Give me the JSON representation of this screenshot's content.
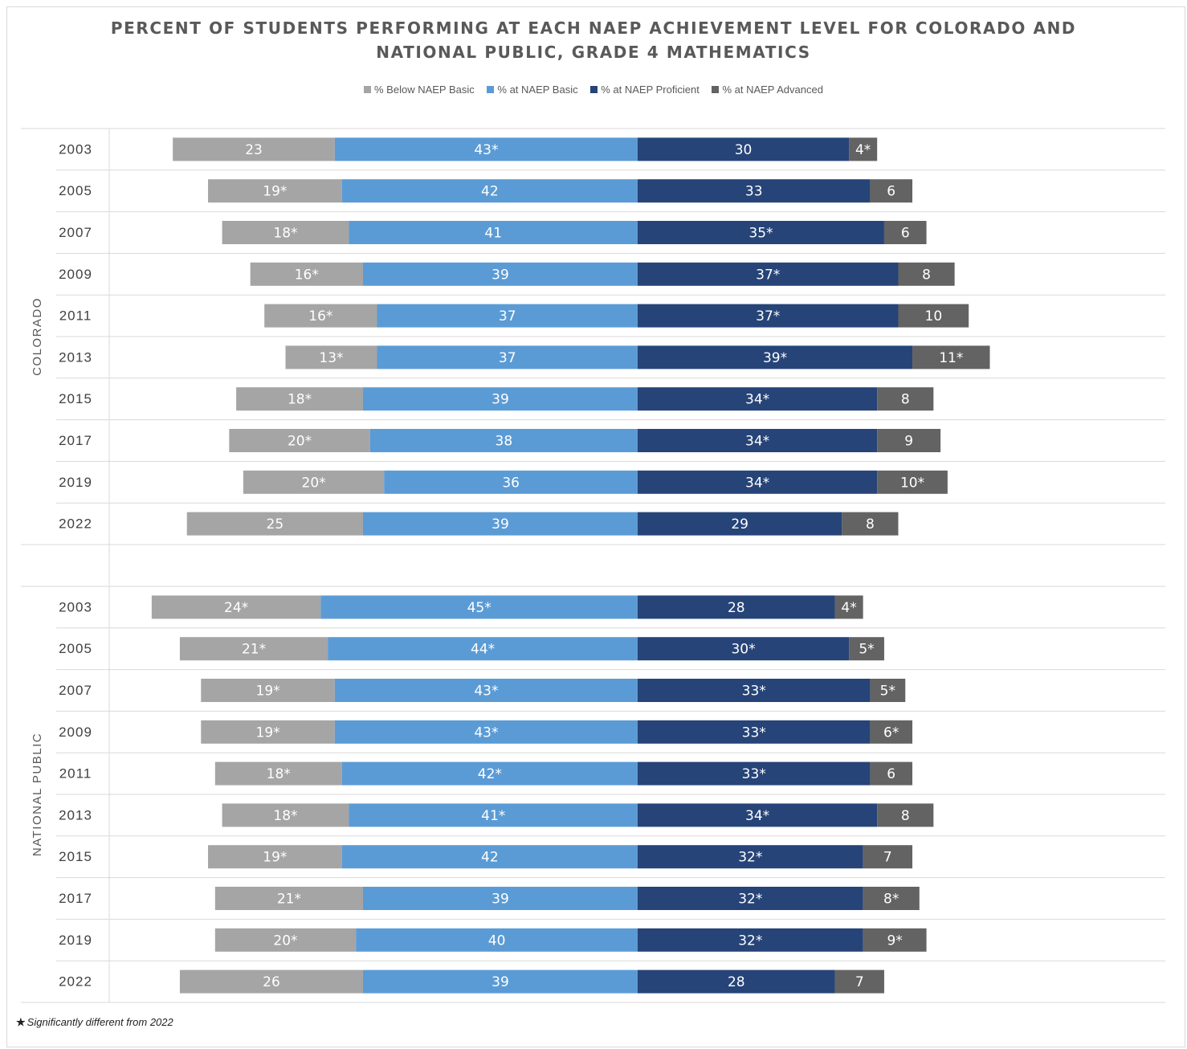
{
  "chart_data": {
    "type": "bar",
    "orientation": "horizontal",
    "stacked": "diverging",
    "title": [
      "PERCENT OF STUDENTS PERFORMING AT EACH NAEP ACHIEVEMENT LEVEL FOR COLORADO AND",
      "NATIONAL PUBLIC, GRADE 4 MATHEMATICS"
    ],
    "legend": [
      {
        "name": "% Below NAEP Basic",
        "color": "#a5a5a5"
      },
      {
        "name": "% at NAEP Basic",
        "color": "#5b9bd5"
      },
      {
        "name": "% at NAEP Proficient",
        "color": "#264478"
      },
      {
        "name": "% at NAEP Advanced",
        "color": "#636363"
      }
    ],
    "legend_position": "top-center",
    "footnote": {
      "symbol": "★",
      "text": "Significantly different from 2022"
    },
    "groups": [
      {
        "name": "COLORADO",
        "rows": [
          {
            "year": "2003",
            "values": [
              23,
              43,
              30,
              4
            ],
            "labels": [
              "23",
              "43*",
              "30",
              "4*"
            ]
          },
          {
            "year": "2005",
            "values": [
              19,
              42,
              33,
              6
            ],
            "labels": [
              "19*",
              "42",
              "33",
              "6"
            ]
          },
          {
            "year": "2007",
            "values": [
              18,
              41,
              35,
              6
            ],
            "labels": [
              "18*",
              "41",
              "35*",
              "6"
            ]
          },
          {
            "year": "2009",
            "values": [
              16,
              39,
              37,
              8
            ],
            "labels": [
              "16*",
              "39",
              "37*",
              "8"
            ]
          },
          {
            "year": "2011",
            "values": [
              16,
              37,
              37,
              10
            ],
            "labels": [
              "16*",
              "37",
              "37*",
              "10"
            ]
          },
          {
            "year": "2013",
            "values": [
              13,
              37,
              39,
              11
            ],
            "labels": [
              "13*",
              "37",
              "39*",
              "11*"
            ]
          },
          {
            "year": "2015",
            "values": [
              18,
              39,
              34,
              8
            ],
            "labels": [
              "18*",
              "39",
              "34*",
              "8"
            ]
          },
          {
            "year": "2017",
            "values": [
              20,
              38,
              34,
              9
            ],
            "labels": [
              "20*",
              "38",
              "34*",
              "9"
            ]
          },
          {
            "year": "2019",
            "values": [
              20,
              36,
              34,
              10
            ],
            "labels": [
              "20*",
              "36",
              "34*",
              "10*"
            ]
          },
          {
            "year": "2022",
            "values": [
              25,
              39,
              29,
              8
            ],
            "labels": [
              "25",
              "39",
              "29",
              "8"
            ]
          }
        ]
      },
      {
        "name": "NATIONAL PUBLIC",
        "rows": [
          {
            "year": "2003",
            "values": [
              24,
              45,
              28,
              4
            ],
            "labels": [
              "24*",
              "45*",
              "28",
              "4*"
            ]
          },
          {
            "year": "2005",
            "values": [
              21,
              44,
              30,
              5
            ],
            "labels": [
              "21*",
              "44*",
              "30*",
              "5*"
            ]
          },
          {
            "year": "2007",
            "values": [
              19,
              43,
              33,
              5
            ],
            "labels": [
              "19*",
              "43*",
              "33*",
              "5*"
            ]
          },
          {
            "year": "2009",
            "values": [
              19,
              43,
              33,
              6
            ],
            "labels": [
              "19*",
              "43*",
              "33*",
              "6*"
            ]
          },
          {
            "year": "2011",
            "values": [
              18,
              42,
              33,
              6
            ],
            "labels": [
              "18*",
              "42*",
              "33*",
              "6"
            ]
          },
          {
            "year": "2013",
            "values": [
              18,
              41,
              34,
              8
            ],
            "labels": [
              "18*",
              "41*",
              "34*",
              "8"
            ]
          },
          {
            "year": "2015",
            "values": [
              19,
              42,
              32,
              7
            ],
            "labels": [
              "19*",
              "42",
              "32*",
              "7"
            ]
          },
          {
            "year": "2017",
            "values": [
              21,
              39,
              32,
              8
            ],
            "labels": [
              "21*",
              "39",
              "32*",
              "8*"
            ]
          },
          {
            "year": "2019",
            "values": [
              20,
              40,
              32,
              9
            ],
            "labels": [
              "20*",
              "40",
              "32*",
              "9*"
            ]
          },
          {
            "year": "2022",
            "values": [
              26,
              39,
              28,
              7
            ],
            "labels": [
              "26",
              "39",
              "28",
              "7"
            ]
          }
        ]
      }
    ]
  }
}
